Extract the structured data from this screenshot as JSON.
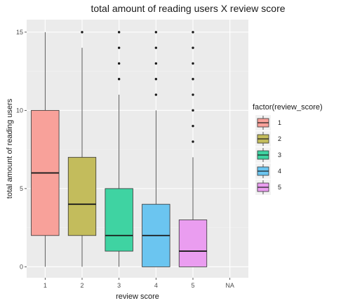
{
  "chart_data": {
    "type": "boxplot",
    "title": "total amount of reading users X review score",
    "xlabel": "review score",
    "ylabel": "total amount of reading users",
    "categories": [
      "1",
      "2",
      "3",
      "4",
      "5",
      "NA"
    ],
    "ylim": [
      -0.7,
      15.8
    ],
    "yticks": [
      0,
      5,
      10,
      15
    ],
    "grid": true,
    "legend": {
      "title": "factor(review_score)",
      "position": "right",
      "entries": [
        "1",
        "2",
        "3",
        "4",
        "5"
      ]
    },
    "series": [
      {
        "category": "1",
        "color": "#F8A19A",
        "min": 0,
        "q1": 2,
        "median": 6,
        "q3": 10,
        "max": 15,
        "outliers": []
      },
      {
        "category": "2",
        "color": "#C3BC5C",
        "min": 0,
        "q1": 2,
        "median": 4,
        "q3": 7,
        "max": 14,
        "outliers": [
          15
        ]
      },
      {
        "category": "3",
        "color": "#3FD3A2",
        "min": 0,
        "q1": 1,
        "median": 2,
        "q3": 5,
        "max": 11,
        "outliers": [
          12,
          13,
          14,
          15
        ]
      },
      {
        "category": "4",
        "color": "#6BC5F0",
        "min": 0,
        "q1": 0,
        "median": 2,
        "q3": 4,
        "max": 10,
        "outliers": [
          11,
          12,
          13,
          14,
          15
        ]
      },
      {
        "category": "5",
        "color": "#EA9DF0",
        "min": 0,
        "q1": 0,
        "median": 1,
        "q3": 3,
        "max": 7,
        "outliers": [
          8,
          9,
          10,
          11,
          12,
          13,
          14,
          15
        ]
      }
    ]
  }
}
